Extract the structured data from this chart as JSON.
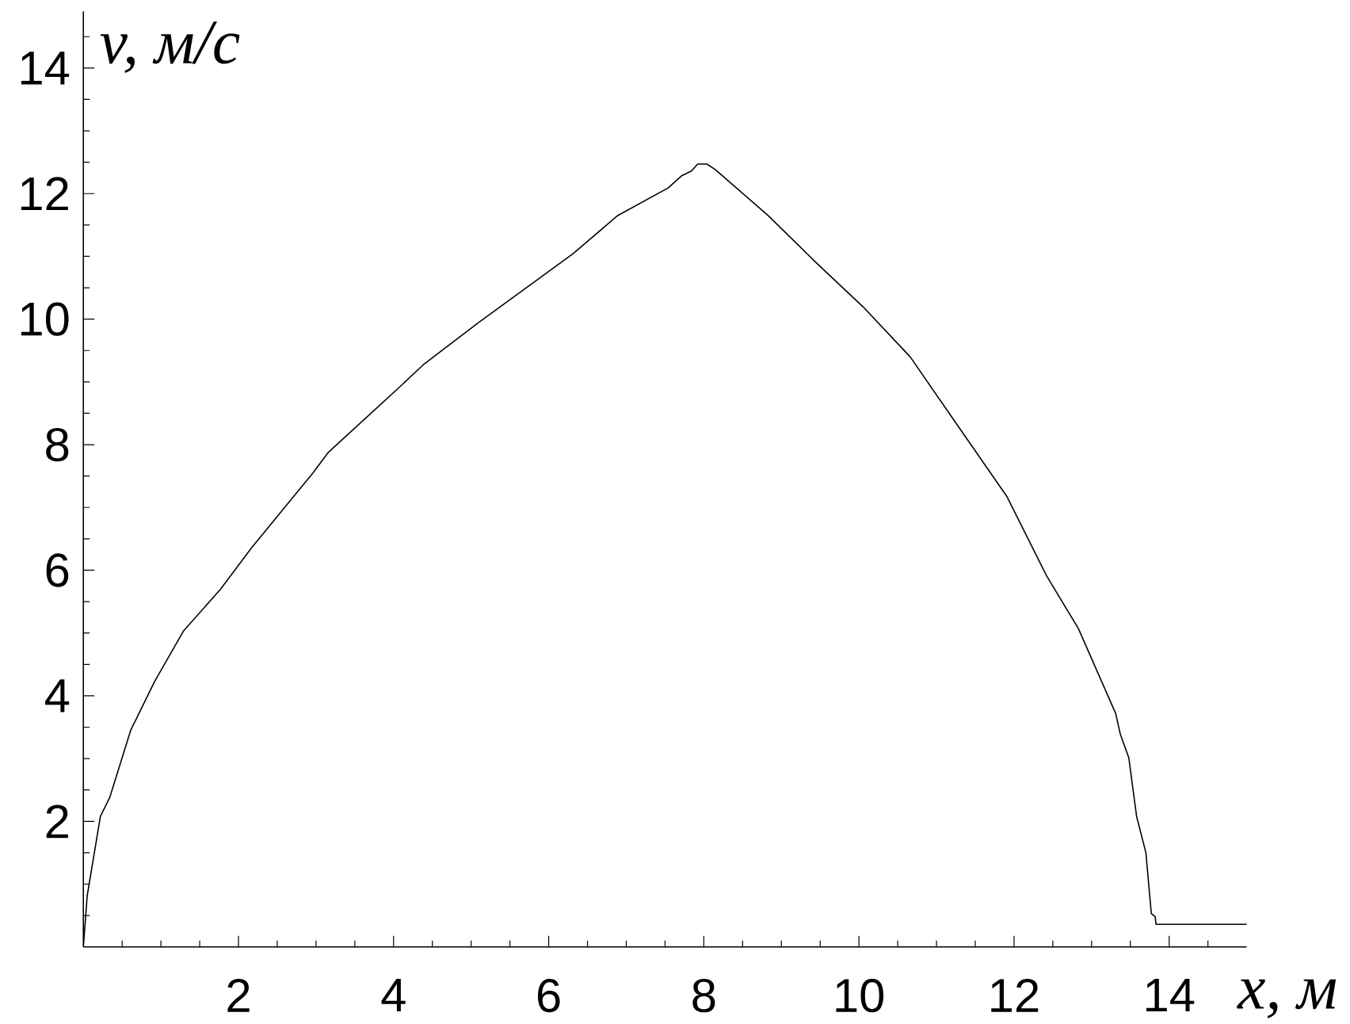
{
  "chart_data": {
    "type": "line",
    "xlabel": "x, м",
    "ylabel": "v, м/с",
    "color": "#000000",
    "line_style": "solid",
    "x": [
      0,
      0.05,
      0.22,
      0.34,
      0.61,
      0.92,
      1.29,
      1.77,
      2.17,
      2.96,
      3.16,
      4.07,
      4.38,
      5.09,
      6.31,
      6.89,
      7.54,
      7.71,
      7.84,
      7.92,
      8.04,
      8.15,
      8.82,
      9.44,
      10.05,
      10.66,
      11.27,
      11.91,
      12.42,
      12.83,
      13.31,
      13.37,
      13.48,
      13.58,
      13.7,
      13.77,
      13.82,
      13.83,
      15
    ],
    "values": [
      0,
      0.82,
      2.08,
      2.38,
      3.45,
      4.23,
      5.03,
      5.7,
      6.36,
      7.55,
      7.88,
      8.91,
      9.27,
      9.94,
      11.04,
      11.65,
      12.09,
      12.28,
      12.36,
      12.47,
      12.47,
      12.38,
      11.66,
      10.91,
      10.2,
      9.4,
      8.31,
      7.17,
      5.91,
      5.07,
      3.72,
      3.39,
      3.01,
      2.08,
      1.5,
      0.53,
      0.48,
      0.36,
      0.36
    ],
    "xlim": [
      0,
      15
    ],
    "ylim": [
      0,
      14.9
    ],
    "xticks": [
      {
        "value": 0.5,
        "label": null
      },
      {
        "value": 1,
        "label": null
      },
      {
        "value": 1.5,
        "label": null
      },
      2,
      {
        "value": 2.5,
        "label": null
      },
      {
        "value": 3,
        "label": null
      },
      {
        "value": 3.5,
        "label": null
      },
      4,
      {
        "value": 4.5,
        "label": null
      },
      {
        "value": 5,
        "label": null
      },
      {
        "value": 5.5,
        "label": null
      },
      6,
      {
        "value": 6.5,
        "label": null
      },
      {
        "value": 7,
        "label": null
      },
      {
        "value": 7.5,
        "label": null
      },
      8,
      {
        "value": 8.5,
        "label": null
      },
      {
        "value": 9,
        "label": null
      },
      {
        "value": 9.5,
        "label": null
      },
      10,
      {
        "value": 10.5,
        "label": null
      },
      {
        "value": 11,
        "label": null
      },
      {
        "value": 11.5,
        "label": null
      },
      12,
      {
        "value": 12.5,
        "label": null
      },
      {
        "value": 13,
        "label": null
      },
      {
        "value": 13.5,
        "label": null
      },
      14,
      {
        "value": 14.5,
        "label": null
      }
    ],
    "yticks": [
      {
        "value": 0.5,
        "label": null
      },
      {
        "value": 1,
        "label": null
      },
      {
        "value": 1.5,
        "label": null
      },
      2,
      {
        "value": 2.5,
        "label": null
      },
      {
        "value": 3,
        "label": null
      },
      {
        "value": 3.5,
        "label": null
      },
      4,
      {
        "value": 4.5,
        "label": null
      },
      {
        "value": 5,
        "label": null
      },
      {
        "value": 5.5,
        "label": null
      },
      6,
      {
        "value": 6.5,
        "label": null
      },
      {
        "value": 7,
        "label": null
      },
      {
        "value": 7.5,
        "label": null
      },
      8,
      {
        "value": 8.5,
        "label": null
      },
      {
        "value": 9,
        "label": null
      },
      {
        "value": 9.5,
        "label": null
      },
      10,
      {
        "value": 10.5,
        "label": null
      },
      {
        "value": 11,
        "label": null
      },
      {
        "value": 11.5,
        "label": null
      },
      12,
      {
        "value": 12.5,
        "label": null
      },
      {
        "value": 13,
        "label": null
      },
      {
        "value": 13.5,
        "label": null
      },
      14,
      {
        "value": 14.5,
        "label": null
      }
    ]
  }
}
